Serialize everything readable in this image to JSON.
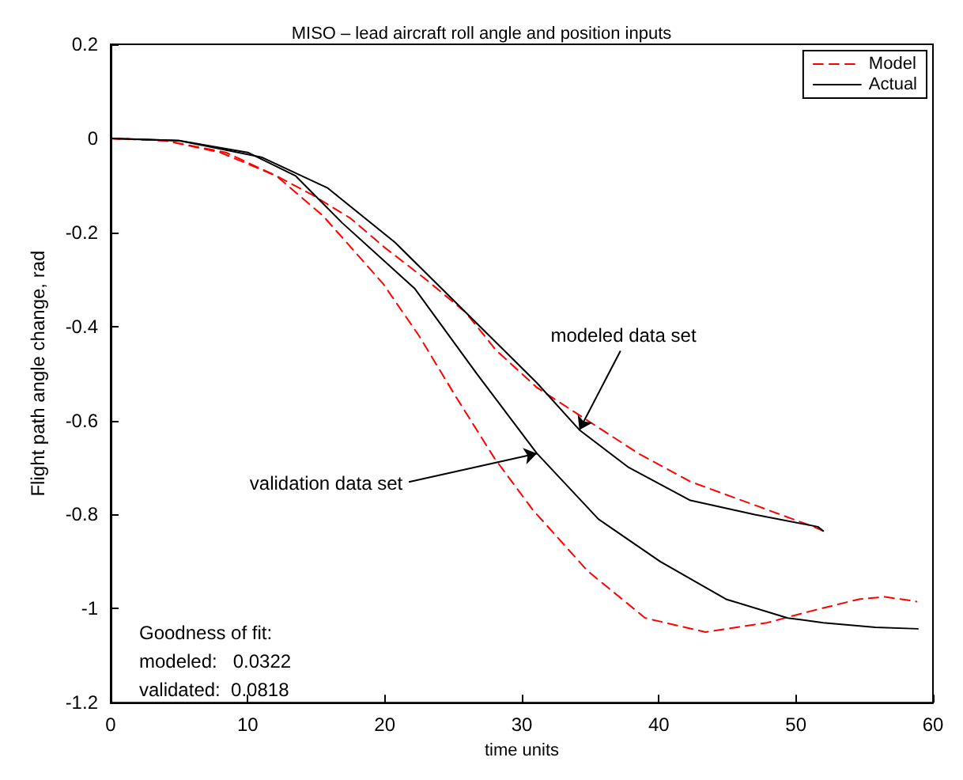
{
  "chart_data": {
    "type": "line",
    "title": "MISO – lead aircraft roll angle and position inputs",
    "xlabel": "time units",
    "ylabel": "Flight path angle change, rad",
    "xlim": [
      0,
      60
    ],
    "xticks": [
      0,
      10,
      20,
      30,
      40,
      50,
      60
    ],
    "ylim": [
      -1.2,
      0.2
    ],
    "yticks": [
      -1.2,
      -1,
      -0.8,
      -0.6,
      -0.4,
      -0.2,
      0,
      0.2
    ],
    "grid": false,
    "legend": "top right",
    "marker": "none",
    "series": [
      {
        "name": "Model",
        "color": "#ff0000",
        "line_style": "dashed",
        "x": [
          0,
          4,
          8.4,
          12.1,
          14.7,
          17.5,
          19.9,
          23,
          25.9,
          28.1,
          31.1,
          34.8,
          38.5,
          42.3,
          47,
          51.3,
          52
        ],
        "values": [
          0,
          -0.005,
          -0.03,
          -0.08,
          -0.12,
          -0.17,
          -0.23,
          -0.3,
          -0.37,
          -0.45,
          -0.53,
          -0.6,
          -0.67,
          -0.73,
          -0.78,
          -0.826,
          -0.835
        ]
      },
      {
        "name": "Actual",
        "color": "#000000",
        "line_style": "solid",
        "x": [
          0,
          5,
          11,
          15.8,
          20.7,
          25.9,
          31.1,
          34.2,
          37.8,
          42.3,
          47,
          51.6,
          52
        ],
        "values": [
          0,
          -0.005,
          -0.04,
          -0.105,
          -0.22,
          -0.37,
          -0.52,
          -0.62,
          -0.7,
          -0.77,
          -0.8,
          -0.826,
          -0.835
        ]
      },
      {
        "color": "#ff0000",
        "line_style": "dashed",
        "x": [
          0,
          4,
          8,
          12.1,
          15.5,
          19.9,
          22.5,
          25.2,
          28,
          30.8,
          34.8,
          39,
          43.4,
          47.9,
          51,
          54.6,
          56.5,
          58.8
        ],
        "values": [
          0,
          -0.005,
          -0.03,
          -0.08,
          -0.165,
          -0.31,
          -0.42,
          -0.55,
          -0.68,
          -0.79,
          -0.92,
          -1.02,
          -1.05,
          -1.03,
          -1.006,
          -0.98,
          -0.975,
          -0.985
        ]
      },
      {
        "color": "#000000",
        "line_style": "solid",
        "x": [
          0,
          5,
          10,
          13.5,
          16.9,
          22.2,
          26.7,
          31.1,
          35.6,
          40.1,
          44.9,
          49.4,
          52,
          55.8,
          58.9
        ],
        "values": [
          0,
          -0.005,
          -0.03,
          -0.08,
          -0.18,
          -0.32,
          -0.5,
          -0.67,
          -0.81,
          -0.9,
          -0.98,
          -1.02,
          -1.03,
          -1.04,
          -1.043
        ]
      }
    ],
    "annotations": [
      {
        "text": "modeled data set",
        "x": 34.2,
        "y": -0.62
      },
      {
        "text": "validation data set",
        "x": 31.1,
        "y": -0.67
      },
      "Goodness of fit:",
      "modeled:   0.0322",
      "validated:  0.0818"
    ]
  }
}
